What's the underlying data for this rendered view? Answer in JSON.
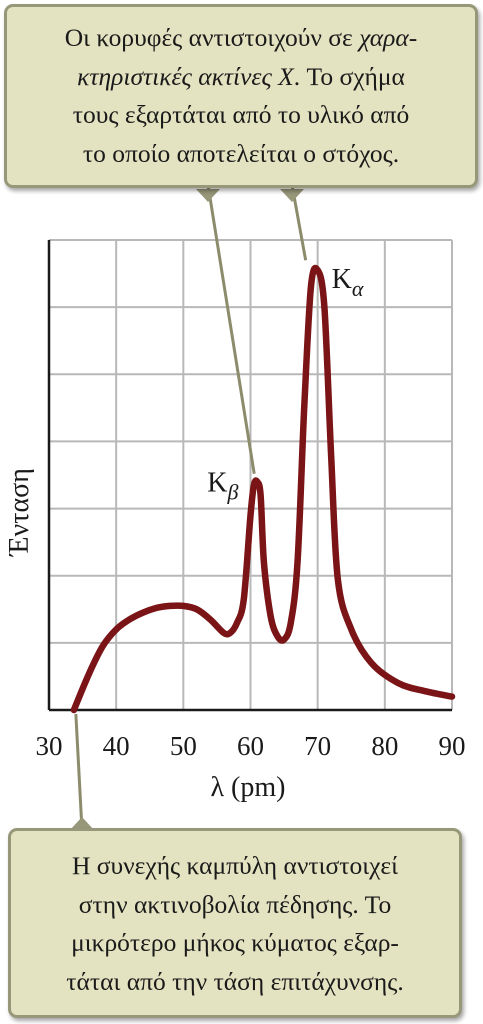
{
  "top_callout": {
    "line1_a": "Οι κορυφές αντιστοιχούν σε ",
    "line1_b": "χαρα-",
    "line2_a": "κτηριστικές ακτίνες X",
    "line2_b": ". Το σχήμα",
    "line3": "τους εξαρτάται από το υλικό από",
    "line4": "το οποίο αποτελείται ο στόχος."
  },
  "bottom_callout": {
    "line1": "Η συνεχής καμπύλη αντιστοιχεί",
    "line2": "στην ακτινοβολία πέδησης. Το",
    "line3": "μικρότερο μήκος κύματος εξαρ-",
    "line4": "τάται από την τάση επιτάχυνσης."
  },
  "colors": {
    "curve": "#7a1416",
    "grid": "#b8b8b8",
    "axis": "#1a1a1a",
    "callout_fill": "#e4e3c1",
    "callout_border": "#97977a",
    "pointer": "#8c8c6c"
  },
  "chart_data": {
    "type": "line",
    "xlabel": "λ (pm)",
    "ylabel": "Ένταση",
    "xlim": [
      30,
      90
    ],
    "xticks": [
      30,
      40,
      50,
      60,
      70,
      80,
      90
    ],
    "ylim": [
      0,
      7
    ],
    "y_tick_labels_shown": false,
    "grid": true,
    "series": [
      {
        "x": [
          33.7,
          36,
          38,
          40,
          42,
          44,
          46,
          48,
          50,
          52,
          54,
          56,
          57,
          58,
          59,
          60,
          60.5,
          61,
          61.5,
          62,
          63,
          64,
          65,
          66,
          67,
          68,
          69,
          70,
          71,
          72,
          73,
          75,
          78,
          82,
          86,
          90
        ],
        "y": [
          0.0,
          0.55,
          0.95,
          1.2,
          1.35,
          1.45,
          1.52,
          1.55,
          1.55,
          1.5,
          1.35,
          1.15,
          1.15,
          1.3,
          1.65,
          2.9,
          3.35,
          3.4,
          3.2,
          2.2,
          1.4,
          1.1,
          1.05,
          1.3,
          2.2,
          4.5,
          6.3,
          6.55,
          6.0,
          3.8,
          1.95,
          1.2,
          0.7,
          0.4,
          0.28,
          0.2
        ]
      }
    ],
    "annotations": [
      {
        "base": "K",
        "sub": "β",
        "x": 61,
        "y": 3.4
      },
      {
        "base": "K",
        "sub": "α",
        "x": 70,
        "y": 6.55
      }
    ]
  }
}
